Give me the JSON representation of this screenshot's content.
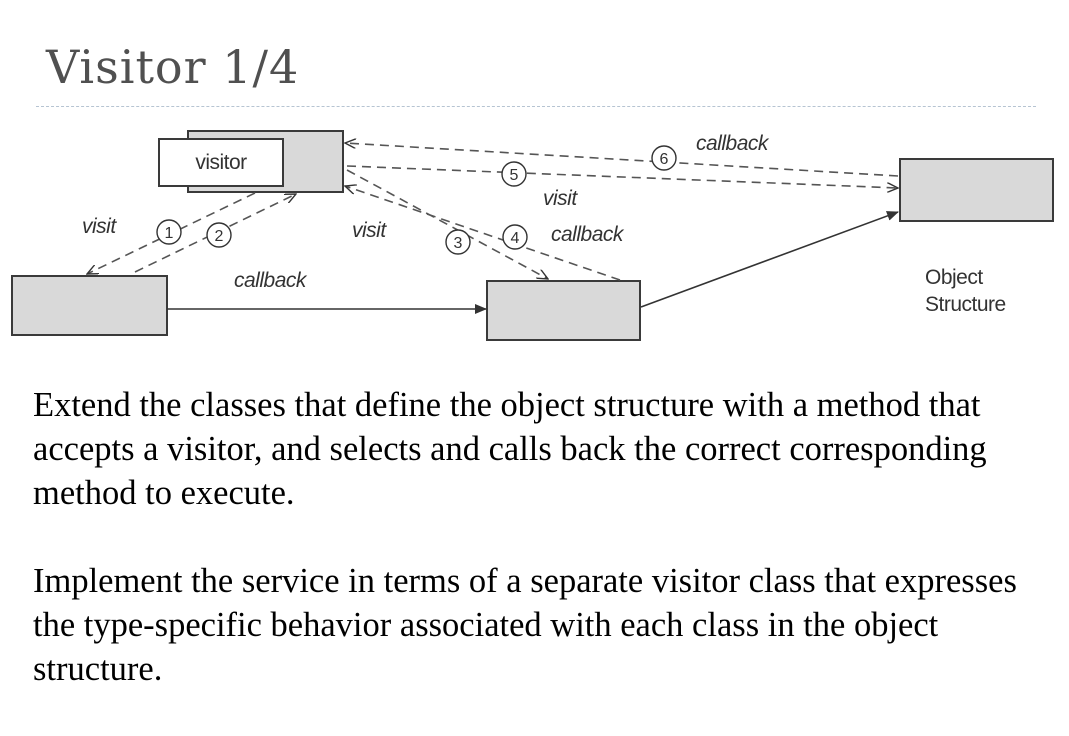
{
  "slide": {
    "title": "Visitor 1/4"
  },
  "diagram": {
    "visitor_label": "visitor",
    "object_structure_label": "Object\nStructure",
    "object_structure_lines": [
      "Object",
      "Structure"
    ],
    "edge_labels": {
      "visit_left": "visit",
      "callback_bottom": "callback",
      "visit_middle": "visit",
      "callback_middle": "callback",
      "visit_top": "visit",
      "callback_top": "callback"
    },
    "step_numbers": [
      "1",
      "2",
      "3",
      "4",
      "5",
      "6"
    ]
  },
  "body": {
    "paragraph1": "Extend the classes that define the object structure with a method that accepts a visitor, and selects and calls back the correct corresponding method to execute.",
    "paragraph2": "Implement the service in terms of a separate visitor class that expresses the type-specific behavior associated with each class in the object structure."
  }
}
